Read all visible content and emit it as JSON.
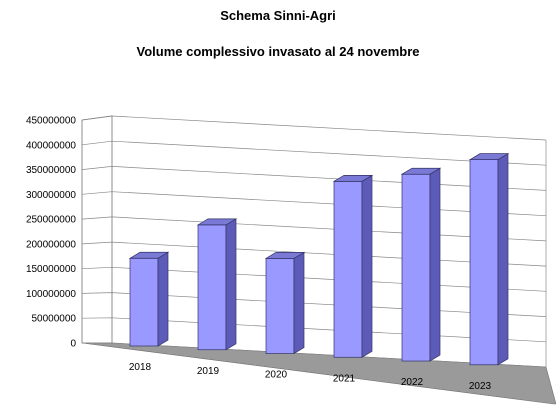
{
  "chart_data": {
    "type": "bar",
    "title": "Schema Sinni-Agri",
    "subtitle": "Volume complessivo invasato al 24 novembre",
    "categories": [
      "2018",
      "2019",
      "2020",
      "2021",
      "2022",
      "2023"
    ],
    "values": [
      177000000,
      252000000,
      192000000,
      355000000,
      377000000,
      414000000
    ],
    "ylim": [
      0,
      450000000
    ],
    "yticks": [
      "0",
      "50000000",
      "100000000",
      "150000000",
      "200000000",
      "250000000",
      "300000000",
      "350000000",
      "400000000",
      "450000000"
    ],
    "grid": true,
    "legend": "none",
    "style": "3d-perspective",
    "colors": {
      "bar_front": "#9999ff",
      "bar_side": "#5c5cb8",
      "bar_top": "#7a7ad6",
      "floor": "#9a9a9a",
      "grid": "#888888"
    }
  }
}
